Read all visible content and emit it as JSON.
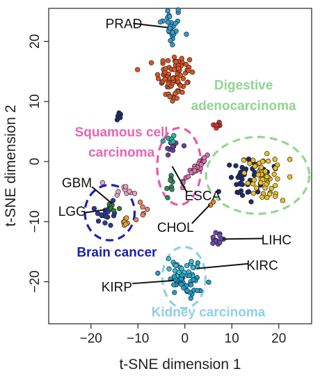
{
  "chart_data": {
    "type": "scatter",
    "xlabel": "t-SNE dimension 1",
    "ylabel": "t-SNE dimension 2",
    "xlim": [
      -29,
      27
    ],
    "ylim": [
      -27,
      25.5
    ],
    "x_ticks": [
      -20,
      -10,
      0,
      10,
      20
    ],
    "y_ticks": [
      -20,
      -10,
      0,
      10,
      20
    ],
    "x_tick_labels": [
      "−20",
      "−10",
      "0",
      "10",
      "20"
    ],
    "y_tick_labels": [
      "−20",
      "−10",
      "0",
      "10",
      "20"
    ],
    "grid": false,
    "legend": "none",
    "clusters": [
      {
        "id": "prad",
        "color": "#2f9fd6",
        "cx": -3,
        "cy": 22.5,
        "sx": 1.2,
        "sy": 1.8,
        "n": 28
      },
      {
        "id": "orange-red",
        "color": "#e0541f",
        "cx": -2,
        "cy": 14.5,
        "sx": 2.0,
        "sy": 1.7,
        "n": 70
      },
      {
        "id": "brown-small",
        "color": "#d65a2a",
        "cx": -3,
        "cy": 10.8,
        "sx": 1.2,
        "sy": 0.6,
        "n": 8
      },
      {
        "id": "navy-small",
        "color": "#1b2a6b",
        "cx": -14,
        "cy": 7.5,
        "sx": 0.35,
        "sy": 0.4,
        "n": 6
      },
      {
        "id": "purple-mid",
        "color": "#6b3fa0",
        "cx": -2.5,
        "cy": 2.5,
        "sx": 1.0,
        "sy": 0.8,
        "n": 10
      },
      {
        "id": "teal-mid",
        "color": "#2bb5a0",
        "cx": -3.5,
        "cy": 3.5,
        "sx": 0.8,
        "sy": 0.6,
        "n": 6
      },
      {
        "id": "red-right",
        "color": "#d93030",
        "cx": 7,
        "cy": 6,
        "sx": 0.6,
        "sy": 0.5,
        "n": 6
      },
      {
        "id": "pink-diag",
        "color": "#e070b0",
        "cx": 2,
        "cy": -1.5,
        "sx": 2.8,
        "sy": 2.4,
        "n": 30,
        "diag": true
      },
      {
        "id": "pink-left",
        "color": "#f0a0c8",
        "cx": -12.5,
        "cy": -4.5,
        "sx": 1.2,
        "sy": 0.7,
        "n": 10
      },
      {
        "id": "digestive-navy",
        "color": "#1f2a70",
        "cx": 13,
        "cy": -2.5,
        "sx": 2.5,
        "sy": 1.7,
        "n": 50
      },
      {
        "id": "digestive-yellow",
        "color": "#f0c020",
        "cx": 17,
        "cy": -2.5,
        "sx": 2.3,
        "sy": 1.6,
        "n": 55
      },
      {
        "id": "esca",
        "color": "#2e8b57",
        "cx": -3,
        "cy": -3.5,
        "sx": 0.8,
        "sy": 1.0,
        "n": 8
      },
      {
        "id": "lgg",
        "color": "#2a3a9a",
        "cx": -17,
        "cy": -9,
        "sx": 1.0,
        "sy": 1.2,
        "n": 18
      },
      {
        "id": "gbm",
        "color": "#2e7d32",
        "cx": -15,
        "cy": -7.5,
        "sx": 0.7,
        "sy": 0.5,
        "n": 6
      },
      {
        "id": "orange-small",
        "color": "#f0a030",
        "cx": -12.5,
        "cy": -10,
        "sx": 0.8,
        "sy": 0.6,
        "n": 7
      },
      {
        "id": "chol",
        "color": "#e08a20",
        "cx": 5.5,
        "cy": -7,
        "sx": 0.3,
        "sy": 0.3,
        "n": 2
      },
      {
        "id": "salmon",
        "color": "#f08060",
        "cx": -9,
        "cy": -8,
        "sx": 0.7,
        "sy": 0.8,
        "n": 6
      },
      {
        "id": "lihc",
        "color": "#6a4ab0",
        "cx": 7,
        "cy": -12.8,
        "sx": 0.7,
        "sy": 0.5,
        "n": 14
      },
      {
        "id": "kirc",
        "color": "#33c1e0",
        "cx": -0.5,
        "cy": -18.5,
        "sx": 1.6,
        "sy": 1.0,
        "n": 30
      },
      {
        "id": "kirp",
        "color": "#1ea0d0",
        "cx": 0,
        "cy": -20.5,
        "sx": 2.0,
        "sy": 1.3,
        "n": 35
      }
    ],
    "ellipses": [
      {
        "id": "squamous-ellipse",
        "color": "#e55aa8",
        "cx": -1.2,
        "cy": -0.8,
        "rx": 4.7,
        "ry": 6.4
      },
      {
        "id": "digestive-ellipse",
        "color": "#90d890",
        "cx": 15.5,
        "cy": -2.3,
        "rx": 11,
        "ry": 6.4
      },
      {
        "id": "brain-ellipse",
        "color": "#1b22b0",
        "cx": -16,
        "cy": -8.5,
        "rx": 5.3,
        "ry": 4.6
      },
      {
        "id": "kidney-ellipse",
        "color": "#8fd0e8",
        "cx": -0.2,
        "cy": -19.3,
        "rx": 4.6,
        "ry": 5.1
      }
    ],
    "annotations": [
      {
        "id": "prad-label",
        "text": "PRAD",
        "x": -13,
        "y": 23.0,
        "anchor": "middle",
        "line": [
          [
            -11,
            23.0
          ],
          [
            -3.5,
            22.3
          ]
        ]
      },
      {
        "id": "gbm-label",
        "text": "GBM",
        "x": -23,
        "y": -3.5,
        "anchor": "middle",
        "line": [
          [
            -19.8,
            -4.2
          ],
          [
            -15.5,
            -7.0
          ]
        ]
      },
      {
        "id": "lgg-label",
        "text": "LGG",
        "x": -24,
        "y": -8.2,
        "anchor": "middle",
        "line": [
          [
            -21.2,
            -8.5
          ],
          [
            -17.0,
            -8.0
          ]
        ]
      },
      {
        "id": "esca-label",
        "text": "ESCA",
        "x": 3.8,
        "y": -5.6,
        "anchor": "middle",
        "line": [
          [
            0.5,
            -5.2
          ],
          [
            -2.7,
            -0.8
          ]
        ]
      },
      {
        "id": "chol-label",
        "text": "CHOL",
        "x": -2.0,
        "y": -10.9,
        "anchor": "middle",
        "line": [
          [
            1.5,
            -10.3
          ],
          [
            5.3,
            -7.2
          ]
        ]
      },
      {
        "id": "lihc-label",
        "text": "LIHC",
        "x": 19.5,
        "y": -13.0,
        "anchor": "middle",
        "line": [
          [
            16.6,
            -12.8
          ],
          [
            8.0,
            -12.9
          ]
        ]
      },
      {
        "id": "kirc-label",
        "text": "KIRC",
        "x": 16.5,
        "y": -17.2,
        "anchor": "middle",
        "line": [
          [
            13.5,
            -17.0
          ],
          [
            2.6,
            -17.8
          ]
        ]
      },
      {
        "id": "kirp-label",
        "text": "KIRP",
        "x": -14.5,
        "y": -20.8,
        "anchor": "middle",
        "line": [
          [
            -11.2,
            -20.3
          ],
          [
            -2.3,
            -19.8
          ]
        ]
      }
    ],
    "group_labels": [
      {
        "id": "digestive-label",
        "lines": [
          "Digestive",
          "adenocarcinoma"
        ],
        "color": "#8fd68f",
        "x": 12.5,
        "y": 12.8,
        "line_gap": 3.4
      },
      {
        "id": "squamous-label",
        "lines": [
          "Squamous cell",
          "carcinoma"
        ],
        "color": "#e966b0",
        "x": -13.5,
        "y": 5.0,
        "line_gap": 3.4
      },
      {
        "id": "brain-label",
        "lines": [
          "Brain cancer"
        ],
        "color": "#1b22b0",
        "x": -14.5,
        "y": -15.0,
        "line_gap": 3.4
      },
      {
        "id": "kidney-label",
        "lines": [
          "Kidney carcinoma"
        ],
        "color": "#8fd0e8",
        "x": 5.0,
        "y": -25.0,
        "line_gap": 3.4
      }
    ]
  }
}
